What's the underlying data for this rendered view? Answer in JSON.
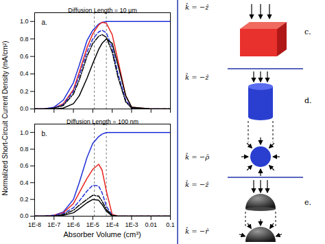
{
  "ylabel": "Normalized Short-Circuit Current Density (mA/cm²)",
  "chart_data": [
    {
      "type": "line",
      "title": "Diffusion Length = 10 μm",
      "panel_label": "a.",
      "log": "x",
      "grid": false,
      "tick_labels": "y",
      "x": [
        1e-08,
        3e-08,
        1e-07,
        3e-07,
        1e-06,
        2e-06,
        5e-06,
        1e-05,
        2e-05,
        3e-05,
        5e-05,
        0.0001,
        0.0002,
        0.0005,
        0.001,
        0.01,
        0.1
      ],
      "series": [
        {
          "color": "#1f2fd6",
          "line_style": "solid",
          "values": [
            0,
            0,
            0.02,
            0.1,
            0.3,
            0.5,
            0.78,
            0.9,
            0.97,
            0.99,
            1.0,
            1.0,
            1.0,
            1.0,
            1.0,
            1.0,
            1.0
          ]
        },
        {
          "color": "#e8241f",
          "line_style": "solid",
          "values": [
            0,
            0,
            0.01,
            0.06,
            0.22,
            0.42,
            0.7,
            0.86,
            0.96,
            0.99,
            0.98,
            0.85,
            0.55,
            0.15,
            0.02,
            0,
            0
          ]
        },
        {
          "color": "#1f2fd6",
          "line_style": "dashed",
          "values": [
            0,
            0,
            0.01,
            0.05,
            0.2,
            0.38,
            0.65,
            0.8,
            0.88,
            0.9,
            0.87,
            0.7,
            0.4,
            0.1,
            0.01,
            0,
            0
          ]
        },
        {
          "color": "#000000",
          "line_style": "dashdot",
          "values": [
            0,
            0,
            0.01,
            0.04,
            0.17,
            0.33,
            0.6,
            0.75,
            0.83,
            0.85,
            0.82,
            0.65,
            0.36,
            0.08,
            0.01,
            0,
            0
          ]
        },
        {
          "color": "#000000",
          "line_style": "solid",
          "values": [
            0,
            0,
            0,
            0.01,
            0.06,
            0.15,
            0.35,
            0.52,
            0.68,
            0.75,
            0.8,
            0.75,
            0.5,
            0.15,
            0.02,
            0,
            0
          ]
        }
      ],
      "vlines": [
        1.2e-05,
        5e-05
      ],
      "xlim": [
        1e-08,
        0.1
      ],
      "ylim": [
        0,
        1.1
      ],
      "xticks": [
        {
          "value": 1e-08,
          "label": "1E-8"
        },
        {
          "value": 1e-07,
          "label": "1E-7"
        },
        {
          "value": 1e-06,
          "label": "1E-6"
        },
        {
          "value": 1e-05,
          "label": "1E-5"
        },
        {
          "value": 0.0001,
          "label": "1E-4"
        },
        {
          "value": 0.001,
          "label": "1E-3"
        },
        0.01,
        0.1
      ],
      "yticks": [
        {
          "value": 0,
          "label": "0.0"
        },
        {
          "value": 0.2,
          "label": "0.2"
        },
        {
          "value": 0.4,
          "label": "0.4"
        },
        {
          "value": 0.6,
          "label": "0.6"
        },
        {
          "value": 0.8,
          "label": "0.8"
        },
        {
          "value": 1.0,
          "label": "1.0"
        }
      ]
    },
    {
      "type": "line",
      "title": "Diffusion Length = 100 nm",
      "panel_label": "b.",
      "log": "x",
      "grid": false,
      "xlabel": "Absorber Volume (cm³)",
      "x": [
        1e-08,
        3e-08,
        1e-07,
        3e-07,
        1e-06,
        2e-06,
        5e-06,
        1e-05,
        2e-05,
        3e-05,
        5e-05,
        0.0001,
        0.0002,
        0.0005,
        0.001,
        0.01,
        0.1
      ],
      "series": [
        {
          "color": "#1f2fd6",
          "line_style": "solid",
          "values": [
            0,
            0,
            0.01,
            0.05,
            0.2,
            0.4,
            0.7,
            0.87,
            0.95,
            0.98,
            1.0,
            1.0,
            1.0,
            1.0,
            1.0,
            1.0,
            1.0
          ]
        },
        {
          "color": "#e8241f",
          "line_style": "solid",
          "values": [
            0,
            0,
            0.01,
            0.04,
            0.15,
            0.28,
            0.45,
            0.56,
            0.62,
            0.55,
            0.3,
            0.02,
            0,
            0,
            0,
            0,
            0
          ]
        },
        {
          "color": "#1f2fd6",
          "line_style": "dashed",
          "values": [
            0,
            0,
            0.01,
            0.03,
            0.1,
            0.18,
            0.3,
            0.37,
            0.36,
            0.28,
            0.12,
            0.01,
            0,
            0,
            0,
            0,
            0
          ]
        },
        {
          "color": "#000000",
          "line_style": "dashdot",
          "values": [
            0,
            0,
            0,
            0.02,
            0.07,
            0.13,
            0.2,
            0.25,
            0.24,
            0.18,
            0.08,
            0.01,
            0,
            0,
            0,
            0,
            0
          ]
        },
        {
          "color": "#000000",
          "line_style": "solid",
          "values": [
            0,
            0,
            0,
            0.01,
            0.04,
            0.09,
            0.16,
            0.2,
            0.19,
            0.14,
            0.06,
            0,
            0,
            0,
            0,
            0,
            0
          ]
        }
      ],
      "vlines": [
        1.2e-05,
        5e-05
      ],
      "xlim": [
        1e-08,
        0.1
      ],
      "ylim": [
        0,
        1.1
      ],
      "xticks": [
        {
          "value": 1e-08,
          "label": "1E-8"
        },
        {
          "value": 1e-07,
          "label": "1E-7"
        },
        {
          "value": 1e-06,
          "label": "1E-6"
        },
        {
          "value": 1e-05,
          "label": "1E-5"
        },
        {
          "value": 0.0001,
          "label": "1E-4"
        },
        {
          "value": 0.001,
          "label": "1E-3"
        },
        0.01,
        0.1
      ],
      "yticks": [
        {
          "value": 0,
          "label": "0.0"
        },
        {
          "value": 0.2,
          "label": "0.2"
        },
        {
          "value": 0.4,
          "label": "0.4"
        },
        {
          "value": 0.6,
          "label": "0.6"
        },
        {
          "value": 0.8,
          "label": "0.8"
        },
        {
          "value": 1.0,
          "label": "1.0"
        }
      ]
    }
  ],
  "diagram": {
    "panels": [
      {
        "label": "c.",
        "directions": [
          "k̂ = −ẑ"
        ]
      },
      {
        "label": "d.",
        "directions": [
          "k̂ = −ẑ",
          "k̂ = −ρ̂"
        ]
      },
      {
        "label": "e.",
        "directions": [
          "k̂ = −ẑ",
          "k̂ = −r̂"
        ]
      }
    ]
  }
}
